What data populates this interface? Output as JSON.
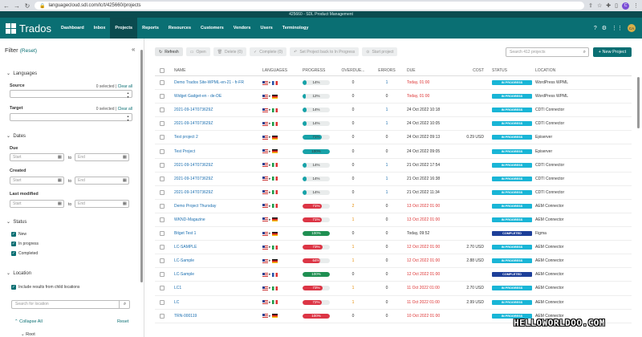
{
  "browser": {
    "url": "languagecloud.sdl.com/lc/t/425660/projects"
  },
  "tenant_strip": "425660 - SDL Product Management",
  "app": {
    "logo": "Trados",
    "nav": [
      "Dashboard",
      "Inbox",
      "Projects",
      "Reports",
      "Resources",
      "Customers",
      "Vendors",
      "Users",
      "Terminology"
    ],
    "active_tab": "Projects",
    "user_initials": "CA"
  },
  "filter": {
    "title": "Filter",
    "reset": "(Reset)",
    "languages": {
      "heading": "Languages",
      "source_label": "Source",
      "source_count": "0 selected",
      "target_label": "Target",
      "target_count": "0 selected",
      "clear_all": "Clear all",
      "separator": "|"
    },
    "dates": {
      "heading": "Dates",
      "due": "Due",
      "created": "Created",
      "last_modified": "Last modified",
      "start_ph": "Start",
      "end_ph": "End",
      "to": "to"
    },
    "status": {
      "heading": "Status",
      "options": [
        "New",
        "In progress",
        "Completed"
      ]
    },
    "location": {
      "heading": "Location",
      "include_child": "Include results from child locations",
      "search_ph": "Search for location",
      "collapse_all": "Collapse All",
      "reset": "Reset",
      "root": "Root"
    }
  },
  "toolbar": {
    "refresh": "Refresh",
    "open": "Open",
    "delete": "Delete (0)",
    "complete": "Complete (0)",
    "set_back": "Set Project back to In Progress",
    "start": "Start project",
    "search_ph": "Search 412 projects",
    "new_project": "+ New Project"
  },
  "columns": [
    "NAME",
    "LANGUAGES",
    "PROGRESS",
    "OVERDUE...",
    "ERRORS",
    "DUE",
    "COST",
    "STATUS",
    "LOCATION"
  ],
  "rows": [
    {
      "name": "Demo Trados Site-WPML-en-21 - fr-FR",
      "flag": "fr",
      "progress": "14%",
      "pct": 14,
      "style": "teal",
      "overdue": "0",
      "errors": "1",
      "err_style": "blue",
      "due": "Today, 01:00",
      "due_style": "red",
      "cost": "",
      "status": "IN PROGRESS",
      "location": "WordPress WPML"
    },
    {
      "name": "Widget Gadget-en - de-DE",
      "flag": "de",
      "progress": "12%",
      "pct": 12,
      "style": "teal",
      "overdue": "0",
      "errors": "0",
      "err_style": "",
      "due": "Today, 01:00",
      "due_style": "red",
      "cost": "",
      "status": "IN PROGRESS",
      "location": "WordPress WPML"
    },
    {
      "name": "2021-09-14T073629Z",
      "flag": "it",
      "progress": "14%",
      "pct": 14,
      "style": "teal",
      "overdue": "0",
      "errors": "1",
      "err_style": "blue",
      "due": "24 Oct 2022 10:18",
      "due_style": "",
      "cost": "",
      "status": "IN PROGRESS",
      "location": "CDTI Connector"
    },
    {
      "name": "2021-09-14T073629Z",
      "flag": "it",
      "progress": "14%",
      "pct": 14,
      "style": "teal",
      "overdue": "0",
      "errors": "1",
      "err_style": "blue",
      "due": "24 Oct 2022 10:05",
      "due_style": "",
      "cost": "",
      "status": "IN PROGRESS",
      "location": "CDTI Connector"
    },
    {
      "name": "Test project 2",
      "flag": "de",
      "progress": "71%",
      "pct": 71,
      "style": "teal",
      "overdue": "0",
      "errors": "0",
      "err_style": "",
      "due": "24 Oct 2022 09:13",
      "due_style": "",
      "cost": "0.29 USD",
      "status": "IN PROGRESS",
      "location": "Episerver"
    },
    {
      "name": "Test Project",
      "flag": "de",
      "progress": "100%",
      "pct": 100,
      "style": "teal",
      "overdue": "0",
      "errors": "0",
      "err_style": "",
      "due": "24 Oct 2022 09:05",
      "due_style": "",
      "cost": "",
      "status": "IN PROGRESS",
      "location": "Episerver"
    },
    {
      "name": "2021-09-14T073629Z",
      "flag": "it",
      "progress": "14%",
      "pct": 14,
      "style": "teal",
      "overdue": "0",
      "errors": "1",
      "err_style": "blue",
      "due": "21 Oct 2022 17:54",
      "due_style": "",
      "cost": "",
      "status": "IN PROGRESS",
      "location": "CDTI Connector"
    },
    {
      "name": "2021-09-14T073629Z",
      "flag": "it",
      "progress": "14%",
      "pct": 14,
      "style": "teal",
      "overdue": "0",
      "errors": "1",
      "err_style": "blue",
      "due": "21 Oct 2022 16:38",
      "due_style": "",
      "cost": "",
      "status": "IN PROGRESS",
      "location": "CDTI Connector"
    },
    {
      "name": "2021-09-14T073629Z",
      "flag": "it",
      "progress": "14%",
      "pct": 14,
      "style": "teal",
      "overdue": "0",
      "errors": "1",
      "err_style": "blue",
      "due": "21 Oct 2022 11:34",
      "due_style": "",
      "cost": "",
      "status": "IN PROGRESS",
      "location": "CDTI Connector"
    },
    {
      "name": "Demo Project Thursday",
      "flag": "it",
      "progress": "71%",
      "pct": 71,
      "style": "red",
      "overdue": "2",
      "ov_style": "orange",
      "errors": "0",
      "err_style": "",
      "due": "13 Oct 2022 01:00",
      "due_style": "red",
      "cost": "",
      "status": "IN PROGRESS",
      "location": "AEM Connector"
    },
    {
      "name": "WKND-Magazine",
      "flag": "de",
      "progress": "71%",
      "pct": 71,
      "style": "red",
      "overdue": "1",
      "ov_style": "orange",
      "errors": "0",
      "err_style": "",
      "due": "13 Oct 2022 01:00",
      "due_style": "red",
      "cost": "",
      "status": "IN PROGRESS",
      "location": "AEM Connector"
    },
    {
      "name": "Bitget Test 1",
      "flag": "de",
      "progress": "100%",
      "pct": 100,
      "style": "green",
      "overdue": "0",
      "errors": "0",
      "err_style": "",
      "due": "Today, 09:52",
      "due_style": "",
      "cost": "",
      "status": "COMPLETED",
      "location": "Figma"
    },
    {
      "name": "LC-SAMPLE",
      "flag": "it",
      "progress": "73%",
      "pct": 73,
      "style": "red",
      "overdue": "1",
      "ov_style": "orange",
      "errors": "0",
      "err_style": "",
      "due": "12 Oct 2022 01:00",
      "due_style": "red",
      "cost": "2.70 USD",
      "status": "IN PROGRESS",
      "location": "AEM Connector"
    },
    {
      "name": "LC-Sample",
      "flag": "de",
      "progress": "64%",
      "pct": 64,
      "style": "red",
      "overdue": "1",
      "ov_style": "orange",
      "errors": "0",
      "err_style": "",
      "due": "12 Oct 2022 01:00",
      "due_style": "red",
      "cost": "2.88 USD",
      "status": "IN PROGRESS",
      "location": "AEM Connector"
    },
    {
      "name": "LC-Sample",
      "flag": "fr",
      "progress": "100%",
      "pct": 100,
      "style": "green",
      "overdue": "0",
      "errors": "0",
      "err_style": "",
      "due": "12 Oct 2022 01:00",
      "due_style": "red",
      "cost": "",
      "status": "COMPLETED",
      "location": "AEM Connector"
    },
    {
      "name": "LC1",
      "flag": "it",
      "progress": "73%",
      "pct": 73,
      "style": "red",
      "overdue": "1",
      "ov_style": "orange",
      "errors": "0",
      "err_style": "",
      "due": "11 Oct 2022 01:00",
      "due_style": "red",
      "cost": "2.70 USD",
      "status": "IN PROGRESS",
      "location": "AEM Connector"
    },
    {
      "name": "LC",
      "flag": "it",
      "progress": "72%",
      "pct": 72,
      "style": "red",
      "overdue": "1",
      "ov_style": "orange",
      "errors": "0",
      "err_style": "",
      "due": "11 Oct 2022 01:00",
      "due_style": "red",
      "cost": "2.99 USD",
      "status": "IN PROGRESS",
      "location": "AEM Connector"
    },
    {
      "name": "TRN-000119",
      "flag": "de",
      "progress": "100%",
      "pct": 100,
      "style": "red",
      "overdue": "0",
      "errors": "0",
      "err_style": "",
      "due": "10 Oct 2022 01:00",
      "due_style": "red",
      "cost": "",
      "status": "IN PROGRESS",
      "location": "AEM Connector"
    }
  ],
  "watermark": "HELLOWORLDOO.COM"
}
